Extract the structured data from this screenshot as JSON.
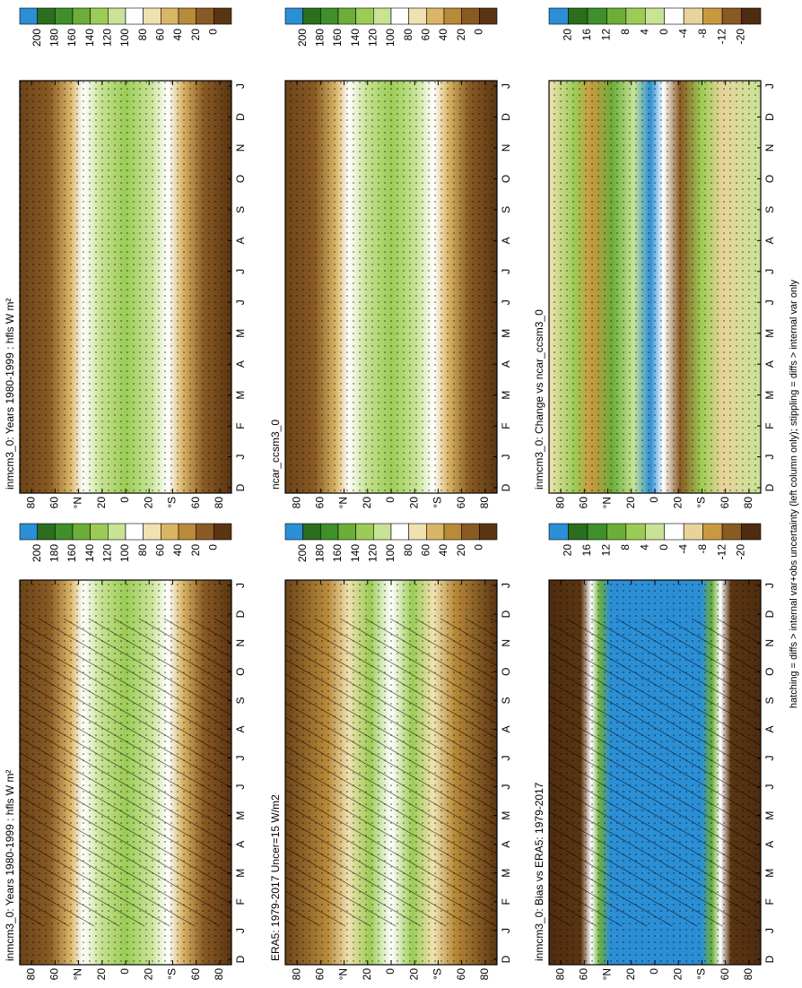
{
  "chart_data": [
    {
      "type": "contour",
      "title": "inmcm3_0: Years 1980-1999 : hfls W m²",
      "categories": [
        "D",
        "J",
        "F",
        "M",
        "A",
        "M",
        "J",
        "J",
        "A",
        "S",
        "O",
        "N",
        "D",
        "J"
      ],
      "ylim": [
        -90,
        90
      ],
      "yticks": [
        80,
        60,
        {
          "value": 40,
          "label": "°N"
        },
        20,
        0,
        {
          "value": -20,
          "label": "20"
        },
        {
          "value": -40,
          "label": "°S"
        },
        {
          "value": -60,
          "label": "60"
        },
        {
          "value": -80,
          "label": "80"
        }
      ],
      "colorbar": {
        "ticks": [
          200,
          180,
          160,
          140,
          120,
          100,
          80,
          60,
          40,
          20,
          0
        ],
        "colors": [
          "#2b8fd6",
          "#2a6e1e",
          "#3f8f2a",
          "#6cae3a",
          "#9ccc55",
          "#c8e396",
          "#ffffff",
          "#efe2b0",
          "#d9b566",
          "#b98a3a",
          "#8a5a24",
          "#5a3512"
        ]
      }
    },
    {
      "type": "contour",
      "title": "inmcm3_0: Years 1980-1999 : hfls W m²",
      "categories": [
        "D",
        "J",
        "F",
        "M",
        "A",
        "M",
        "J",
        "J",
        "A",
        "S",
        "O",
        "N",
        "D",
        "J"
      ],
      "ylim": [
        -90,
        90
      ],
      "yticks": [
        80,
        60,
        {
          "value": 40,
          "label": "°N"
        },
        20,
        0,
        {
          "value": -20,
          "label": "20"
        },
        {
          "value": -40,
          "label": "°S"
        },
        {
          "value": -60,
          "label": "60"
        },
        {
          "value": -80,
          "label": "80"
        }
      ],
      "colorbar": {
        "ticks": [
          200,
          180,
          160,
          140,
          120,
          100,
          80,
          60,
          40,
          20,
          0
        ],
        "colors": [
          "#2b8fd6",
          "#2a6e1e",
          "#3f8f2a",
          "#6cae3a",
          "#9ccc55",
          "#c8e396",
          "#ffffff",
          "#efe2b0",
          "#d9b566",
          "#b98a3a",
          "#8a5a24",
          "#5a3512"
        ]
      }
    },
    {
      "type": "contour",
      "title": "ERA5: 1979-2017 Uncer=15 W/m2",
      "categories": [
        "D",
        "J",
        "F",
        "M",
        "A",
        "M",
        "J",
        "J",
        "A",
        "S",
        "O",
        "N",
        "D",
        "J"
      ],
      "ylim": [
        -90,
        90
      ],
      "yticks": [
        80,
        60,
        {
          "value": 40,
          "label": "°N"
        },
        20,
        0,
        {
          "value": -20,
          "label": "20"
        },
        {
          "value": -40,
          "label": "°S"
        },
        {
          "value": -60,
          "label": "60"
        },
        {
          "value": -80,
          "label": "80"
        }
      ],
      "colorbar": {
        "ticks": [
          200,
          180,
          160,
          140,
          120,
          100,
          80,
          60,
          40,
          20,
          0
        ],
        "colors": [
          "#2b8fd6",
          "#2a6e1e",
          "#3f8f2a",
          "#6cae3a",
          "#9ccc55",
          "#c8e396",
          "#ffffff",
          "#efe2b0",
          "#d9b566",
          "#b98a3a",
          "#8a5a24",
          "#5a3512"
        ]
      }
    },
    {
      "type": "contour",
      "title": "ncar_ccsm3_0",
      "categories": [
        "D",
        "J",
        "F",
        "M",
        "A",
        "M",
        "J",
        "J",
        "A",
        "S",
        "O",
        "N",
        "D",
        "J"
      ],
      "ylim": [
        -90,
        90
      ],
      "yticks": [
        80,
        60,
        {
          "value": 40,
          "label": "°N"
        },
        20,
        0,
        {
          "value": -20,
          "label": "20"
        },
        {
          "value": -40,
          "label": "°S"
        },
        {
          "value": -60,
          "label": "60"
        },
        {
          "value": -80,
          "label": "80"
        }
      ],
      "colorbar": {
        "ticks": [
          200,
          180,
          160,
          140,
          120,
          100,
          80,
          60,
          40,
          20,
          0
        ],
        "colors": [
          "#2b8fd6",
          "#2a6e1e",
          "#3f8f2a",
          "#6cae3a",
          "#9ccc55",
          "#c8e396",
          "#ffffff",
          "#efe2b0",
          "#d9b566",
          "#b98a3a",
          "#8a5a24",
          "#5a3512"
        ]
      }
    },
    {
      "type": "contour",
      "title": "inmcm3_0: Bias vs ERA5: 1979-2017",
      "categories": [
        "D",
        "J",
        "F",
        "M",
        "A",
        "M",
        "J",
        "J",
        "A",
        "S",
        "O",
        "N",
        "D",
        "J"
      ],
      "ylim": [
        -90,
        90
      ],
      "yticks": [
        80,
        60,
        {
          "value": 40,
          "label": "°N"
        },
        20,
        0,
        {
          "value": -20,
          "label": "20"
        },
        {
          "value": -40,
          "label": "°S"
        },
        {
          "value": -60,
          "label": "60"
        },
        {
          "value": -80,
          "label": "80"
        }
      ],
      "colorbar": {
        "ticks": [
          20,
          16,
          12,
          8,
          4,
          0,
          -4,
          -8,
          -12,
          -20
        ],
        "colors": [
          "#2b8fd6",
          "#2a6e1e",
          "#3f8f2a",
          "#6cae3a",
          "#9ccc55",
          "#c8e396",
          "#ffffff",
          "#e8d49a",
          "#c9993f",
          "#8a5a24",
          "#4e2c10"
        ]
      }
    },
    {
      "type": "contour",
      "title": "inmcm3_0: Change vs ncar_ccsm3_0",
      "categories": [
        "D",
        "J",
        "F",
        "M",
        "A",
        "M",
        "J",
        "J",
        "A",
        "S",
        "O",
        "N",
        "D",
        "J"
      ],
      "ylim": [
        -90,
        90
      ],
      "yticks": [
        80,
        60,
        {
          "value": 40,
          "label": "°N"
        },
        20,
        0,
        {
          "value": -20,
          "label": "20"
        },
        {
          "value": -40,
          "label": "°S"
        },
        {
          "value": -60,
          "label": "60"
        },
        {
          "value": -80,
          "label": "80"
        }
      ],
      "colorbar": {
        "ticks": [
          20,
          16,
          12,
          8,
          4,
          0,
          -4,
          -8,
          -12,
          -20
        ],
        "colors": [
          "#2b8fd6",
          "#2a6e1e",
          "#3f8f2a",
          "#6cae3a",
          "#9ccc55",
          "#c8e396",
          "#ffffff",
          "#e8d49a",
          "#c9993f",
          "#8a5a24",
          "#4e2c10"
        ]
      }
    }
  ],
  "caption": "hatching = diffs > internal var+obs uncertainty (left column only); stippling = diffs > internal var only"
}
